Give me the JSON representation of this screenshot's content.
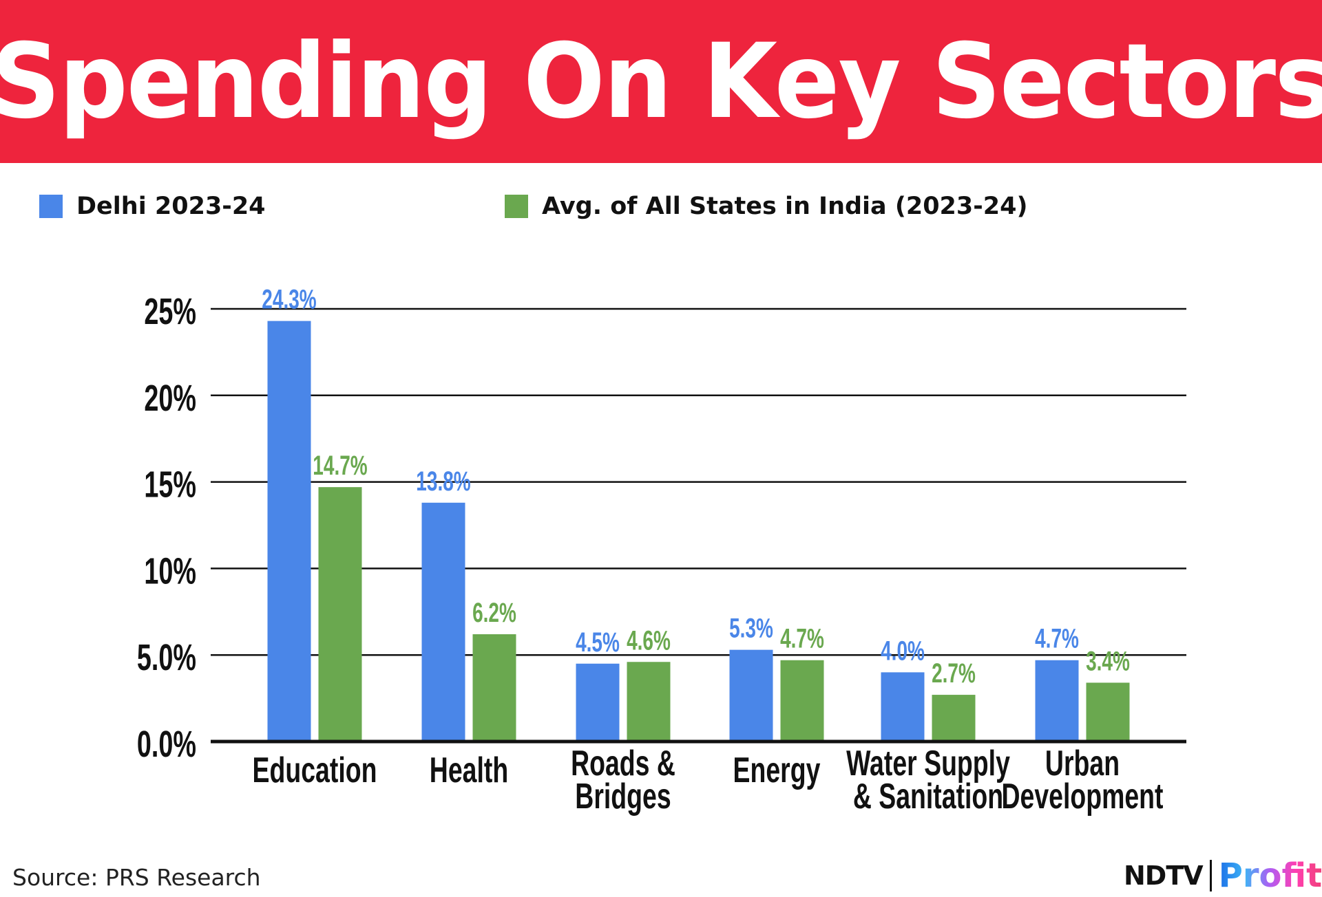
{
  "chart_data": {
    "type": "bar",
    "title": "Spending On Key Sectors",
    "categories": [
      [
        "Education"
      ],
      [
        "Health"
      ],
      [
        "Roads &",
        "Bridges"
      ],
      [
        "Energy"
      ],
      [
        "Water Supply",
        "& Sanitation"
      ],
      [
        "Urban",
        "Development"
      ]
    ],
    "series": [
      {
        "name": "Delhi 2023-24",
        "color": "#4a86e8",
        "values": [
          24.3,
          13.8,
          4.5,
          5.3,
          4.0,
          4.7
        ],
        "labels": [
          "24.3%",
          "13.8%",
          "4.5%",
          "5.3%",
          "4.0%",
          "4.7%"
        ]
      },
      {
        "name": "Avg. of All States in India (2023-24)",
        "color": "#6aa84f",
        "values": [
          14.7,
          6.2,
          4.6,
          4.7,
          2.7,
          3.4
        ],
        "labels": [
          "14.7%",
          "6.2%",
          "4.6%",
          "4.7%",
          "2.7%",
          "3.4%"
        ]
      }
    ],
    "yticks": [
      0,
      5,
      10,
      15,
      20,
      25
    ],
    "ytick_labels": [
      "0.0%",
      "5.0%",
      "10%",
      "15%",
      "20%",
      "25%"
    ],
    "ylim": [
      0,
      25
    ],
    "grid": true,
    "legend": "top-left"
  },
  "source": "Source: PRS Research",
  "logo": {
    "ndtv": "NDTV",
    "profit": "Profit"
  }
}
